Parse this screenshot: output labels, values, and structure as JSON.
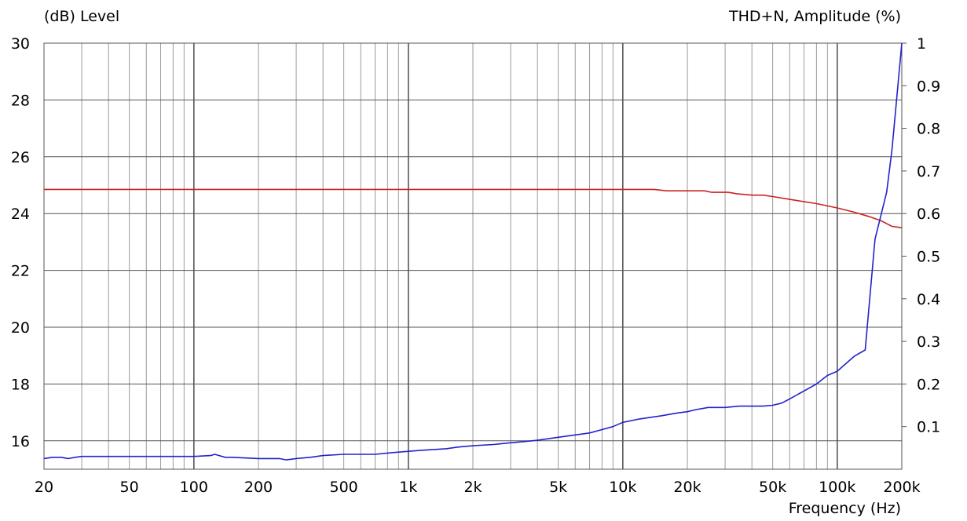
{
  "chart_data": {
    "type": "line",
    "title": "",
    "left_axis_label": "(dB)  Level",
    "right_axis_label": "THD+N, Amplitude  (%)",
    "xlabel": "Frequency  (Hz)",
    "x_scale": "log",
    "xlim": [
      20,
      200000
    ],
    "ylim_left": [
      15,
      30
    ],
    "ylim_right": [
      0,
      1
    ],
    "grid": true,
    "x_ticks": [
      {
        "value": 20,
        "label": "20"
      },
      {
        "value": 50,
        "label": "50"
      },
      {
        "value": 100,
        "label": "100"
      },
      {
        "value": 200,
        "label": "200"
      },
      {
        "value": 500,
        "label": "500"
      },
      {
        "value": 1000,
        "label": "1k"
      },
      {
        "value": 2000,
        "label": "2k"
      },
      {
        "value": 5000,
        "label": "5k"
      },
      {
        "value": 10000,
        "label": "10k"
      },
      {
        "value": 20000,
        "label": "20k"
      },
      {
        "value": 50000,
        "label": "50k"
      },
      {
        "value": 100000,
        "label": "100k"
      },
      {
        "value": 200000,
        "label": "200k"
      }
    ],
    "y_left_ticks": [
      {
        "value": 16,
        "label": "16"
      },
      {
        "value": 18,
        "label": "18"
      },
      {
        "value": 20,
        "label": "20"
      },
      {
        "value": 22,
        "label": "22"
      },
      {
        "value": 24,
        "label": "24"
      },
      {
        "value": 26,
        "label": "26"
      },
      {
        "value": 28,
        "label": "28"
      },
      {
        "value": 30,
        "label": "30"
      }
    ],
    "y_right_ticks": [
      {
        "value": 0.1,
        "label": "0.1"
      },
      {
        "value": 0.2,
        "label": "0.2"
      },
      {
        "value": 0.3,
        "label": "0.3"
      },
      {
        "value": 0.4,
        "label": "0.4"
      },
      {
        "value": 0.5,
        "label": "0.5"
      },
      {
        "value": 0.6,
        "label": "0.6"
      },
      {
        "value": 0.7,
        "label": "0.7"
      },
      {
        "value": 0.8,
        "label": "0.8"
      },
      {
        "value": 0.9,
        "label": "0.9"
      },
      {
        "value": 1,
        "label": "1"
      }
    ],
    "series": [
      {
        "axis": "left",
        "color": "#cc2222",
        "x": [
          20,
          1000,
          10000,
          14000,
          16000,
          24000,
          26000,
          31000,
          34000,
          40000,
          45000,
          50000,
          60000,
          80000,
          100000,
          120000,
          140000,
          160000,
          180000,
          200000
        ],
        "y": [
          24.85,
          24.85,
          24.85,
          24.85,
          24.8,
          24.8,
          24.75,
          24.75,
          24.7,
          24.65,
          24.65,
          24.6,
          24.5,
          24.35,
          24.2,
          24.05,
          23.9,
          23.75,
          23.55,
          23.5
        ]
      },
      {
        "axis": "right",
        "color": "#2222cc",
        "x": [
          20,
          22,
          24,
          26,
          28,
          30,
          100,
          120,
          125,
          140,
          150,
          200,
          250,
          270,
          300,
          350,
          400,
          500,
          700,
          800,
          1000,
          1200,
          1500,
          1700,
          2000,
          2500,
          3000,
          3500,
          4000,
          5000,
          7000,
          9000,
          10000,
          12000,
          15000,
          18000,
          20000,
          22000,
          25000,
          30000,
          35000,
          40000,
          45000,
          50000,
          55000,
          60000,
          80000,
          90000,
          100000,
          120000,
          135000,
          150000,
          170000,
          180000,
          200000
        ],
        "y": [
          0.025,
          0.028,
          0.028,
          0.025,
          0.028,
          0.03,
          0.03,
          0.032,
          0.035,
          0.028,
          0.028,
          0.025,
          0.025,
          0.022,
          0.025,
          0.028,
          0.032,
          0.035,
          0.035,
          0.038,
          0.042,
          0.045,
          0.048,
          0.052,
          0.055,
          0.058,
          0.062,
          0.065,
          0.068,
          0.075,
          0.085,
          0.1,
          0.11,
          0.118,
          0.125,
          0.132,
          0.135,
          0.14,
          0.145,
          0.145,
          0.148,
          0.148,
          0.148,
          0.15,
          0.155,
          0.165,
          0.2,
          0.22,
          0.23,
          0.265,
          0.28,
          0.54,
          0.65,
          0.75,
          1.0
        ]
      }
    ]
  }
}
